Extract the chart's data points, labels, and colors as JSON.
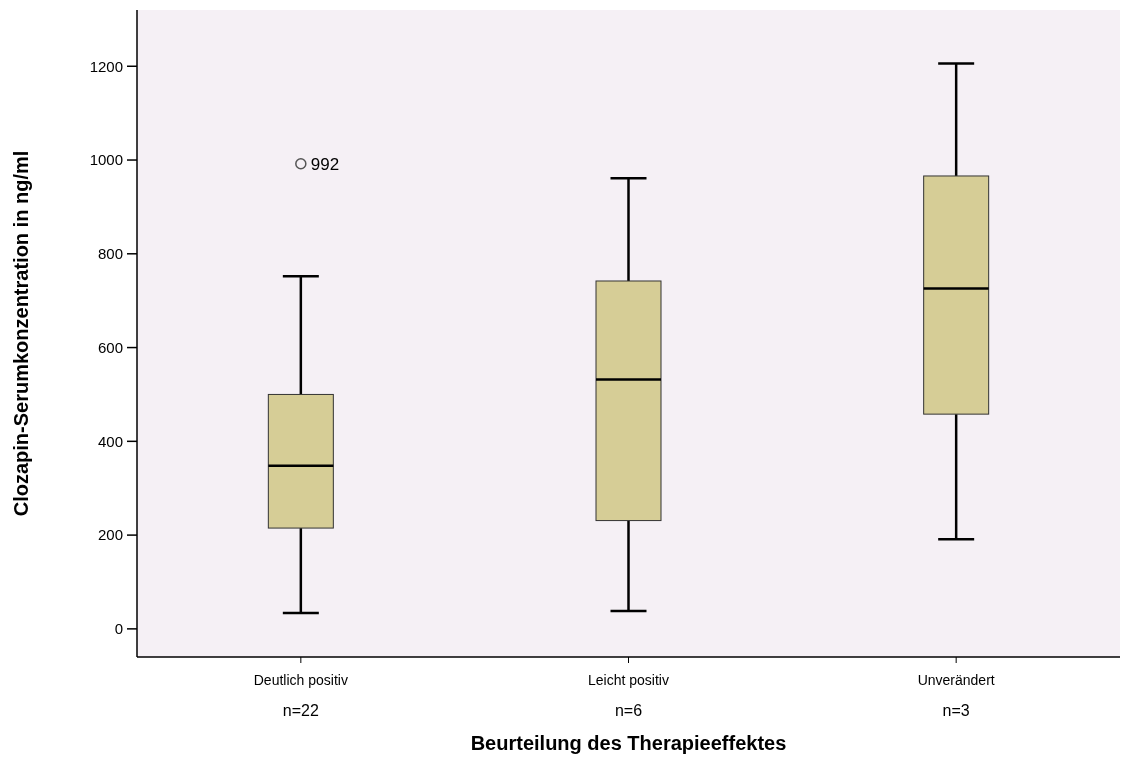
{
  "chart_data": {
    "type": "box",
    "xlabel": "Beurteilung des Therapieeffektes",
    "ylabel": "Clozapin-Serumkonzentration in ng/ml",
    "categories": [
      "Deutlich positiv\nn=22",
      "Leicht positiv\nn=6",
      "Unverändert\nn=3"
    ],
    "color": "#d6cd96",
    "boxes": [
      {
        "low": 34,
        "q1": 215,
        "median": 348,
        "q3": 500,
        "high": 752,
        "outliers": [
          992
        ]
      },
      {
        "low": 38,
        "q1": 231,
        "median": 532,
        "q3": 742,
        "high": 961
      },
      {
        "low": 191,
        "q1": 458,
        "median": 726,
        "q3": 966,
        "high": 1206
      }
    ],
    "ylim": [
      -60,
      1320
    ],
    "yticks": [
      0,
      200,
      400,
      600,
      800,
      1000,
      1200
    ],
    "annotations": [
      "992"
    ],
    "grid": false
  }
}
